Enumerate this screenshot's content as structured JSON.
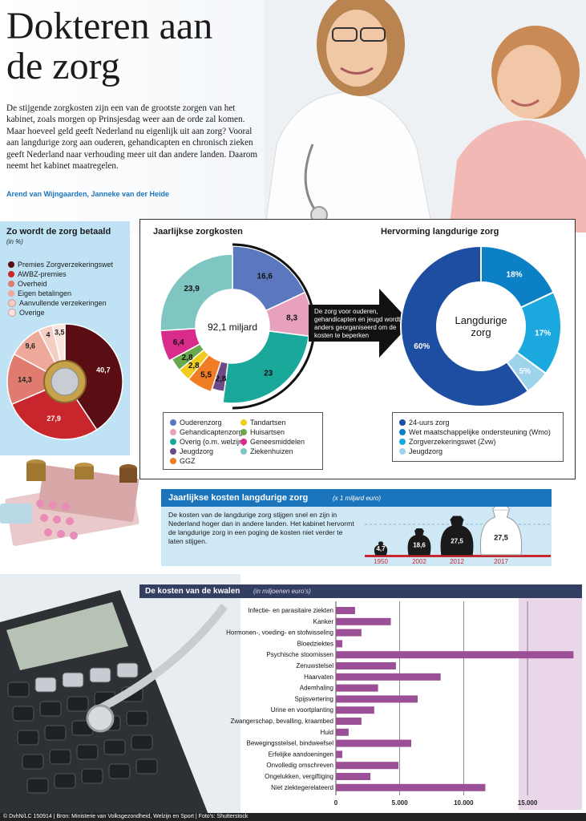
{
  "header": {
    "title_line1": "Dokteren aan",
    "title_line2": "de zorg",
    "intro": "De stijgende zorgkosten zijn een van de grootste zorgen van het kabinet, zoals morgen op Prinsjesdag weer aan de orde zal komen. Maar hoeveel geld geeft Nederland nu eigenlijk uit aan zorg? Vooral aan langdurige zorg aan ouderen, gehandicapten en chronisch zieken geeft Nederland naar verhouding meer uit dan andere landen. Daarom neemt het kabinet maatregelen.",
    "authors": "Arend van Wijngaarden, Janneke van der Heide"
  },
  "colors": {
    "accent_blue": "#1b75bc",
    "purple": "#9b4f96",
    "pie_dark": "#5a0d12"
  },
  "footer": {
    "credits": "© DvhN/LC 150914 | Bron: Ministerie van Volksgezondheid, Welzijn en Sport | Foto's: Shutterstock"
  },
  "chart_data": [
    {
      "id": "betaald",
      "type": "pie",
      "title": "Zo wordt de zorg betaald",
      "subtitle": "(in %)",
      "labels": [
        "Premies Zorgverzekeringswet",
        "AWBZ-premies",
        "Overheid",
        "Eigen betalingen",
        "Aanvullende verzekeringen",
        "Overige"
      ],
      "values": [
        40.7,
        27.9,
        14.3,
        9.6,
        4,
        3.5
      ],
      "value_labels": [
        "40,7",
        "27,9",
        "14,3",
        "9,6",
        "4",
        "3,5"
      ],
      "colors": [
        "#5a0d12",
        "#c8262c",
        "#e07b6f",
        "#efa99b",
        "#f4cdc3",
        "#f9e4de"
      ]
    },
    {
      "id": "zorgkosten",
      "type": "pie",
      "title": "Jaarlijkse zorgkosten",
      "center_label": "92,1 miljard",
      "labels": [
        "Ouderenzorg",
        "Gehandicaptenzorg",
        "Overig (o.m. welzijn)",
        "Jeugdzorg",
        "GGZ",
        "Tandartsen",
        "Huisartsen",
        "Geneesmiddelen",
        "Ziekenhuizen"
      ],
      "values": [
        16.6,
        8.3,
        23,
        2.8,
        5.5,
        2.8,
        2.8,
        6.4,
        23.9
      ],
      "value_labels": [
        "16,6",
        "8,3",
        "23",
        "2,8",
        "5,5",
        "2,8",
        "2,8",
        "6,4",
        "23,9"
      ],
      "colors": [
        "#5b78bf",
        "#e7a1bf",
        "#1aa89a",
        "#6b4a86",
        "#f07d23",
        "#f2cc1c",
        "#6aa84f",
        "#d82b8b",
        "#7fc5c1"
      ]
    },
    {
      "id": "hervorming",
      "type": "pie",
      "title": "Hervorming langdurige zorg",
      "center_label": "Langdurige zorg",
      "arrow_text": "De zorg voor ouderen, gehandicapten en jeugd wordt anders georganiseerd om de kosten te beperken",
      "labels": [
        "24-uurs zorg",
        "Wet maatschappelijke ondersteuning (Wmo)",
        "Zorgverzekeringswet (Zvw)",
        "Jeugdzorg"
      ],
      "values": [
        60,
        18,
        17,
        5
      ],
      "value_labels": [
        "60%",
        "18%",
        "17%",
        "5%"
      ],
      "colors": [
        "#1e4ea1",
        "#0b80c4",
        "#1aa8de",
        "#9ed3ec"
      ]
    },
    {
      "id": "langdurig",
      "type": "bar",
      "title": "Jaarlijkse kosten langdurige zorg",
      "subtitle": "(x 1 miljard euro)",
      "description": "De kosten van de langdurige zorg stijgen snel en zijn in Nederland hoger dan in andere landen. Het kabinet hervormt de langdurige zorg in een poging de kosten niet verder te laten stijgen.",
      "categories": [
        "1950",
        "2002",
        "2012",
        "2017"
      ],
      "values": [
        4.7,
        18.6,
        27.5,
        27.5
      ],
      "value_labels": [
        "4,7",
        "18,6",
        "27,5",
        "27,5"
      ]
    },
    {
      "id": "kwalen",
      "type": "bar",
      "title": "De kosten van de kwalen",
      "subtitle": "(in miljoenen euro's)",
      "categories": [
        "Infectie- en parasitaire ziekten",
        "Kanker",
        "Hormonen-, voeding- en stofwisseling",
        "Bloedziektes",
        "Psychische stoornissen",
        "Zenuwstelsel",
        "Haarvaten",
        "Ademhaling",
        "Spijsvertering",
        "Urine en voortplanting",
        "Zwangerschap, bevalling, kraambed",
        "Huid",
        "Bewegingsstelsel, bindweefsel",
        "Erfelijke aandoeningen",
        "Onvolledig omschreven",
        "Ongelukken, vergiftiging",
        "Niet ziektegerelateerd"
      ],
      "values": [
        1500,
        4300,
        2000,
        500,
        18600,
        4700,
        8200,
        3300,
        6400,
        3000,
        2000,
        1000,
        5900,
        500,
        4900,
        2700,
        11700
      ],
      "xticks": [
        0,
        5000,
        10000,
        15000
      ],
      "xtick_labels": [
        "0",
        "5.000",
        "10.000",
        "15.000"
      ],
      "xlim": [
        0,
        18700
      ]
    }
  ]
}
